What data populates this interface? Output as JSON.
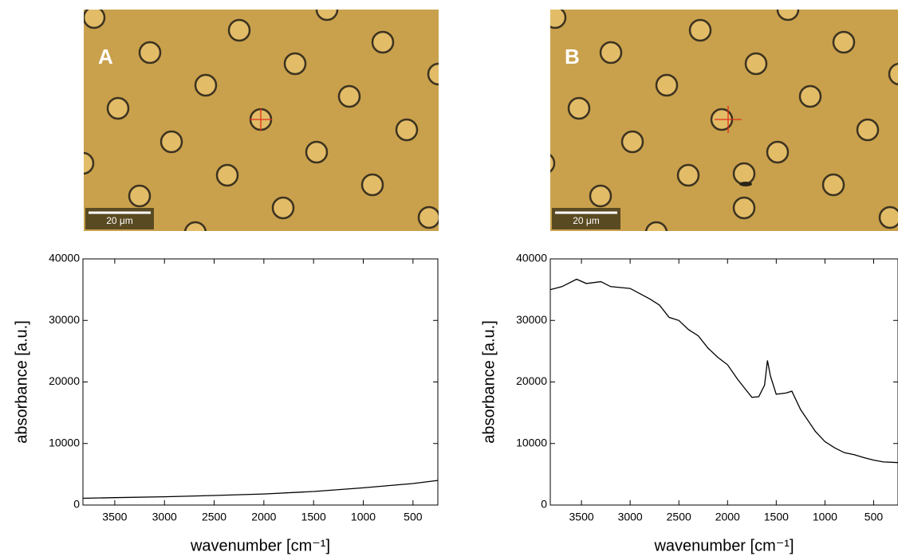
{
  "images": [
    {
      "label": "A",
      "scale_bar": "20 μm"
    },
    {
      "label": "B",
      "scale_bar": "20 μm"
    }
  ],
  "chart_data": [
    {
      "type": "line",
      "xlabel": "wavenumber [cm⁻¹]",
      "ylabel": "absorbance [a.u.]",
      "color": "#000000",
      "xlim": [
        3820,
        250
      ],
      "ylim": [
        0,
        40000
      ],
      "xticks": [
        3500,
        3000,
        2500,
        2000,
        1500,
        1000,
        500
      ],
      "yticks": [
        0,
        10000,
        20000,
        30000,
        40000
      ],
      "x": [
        3820,
        3500,
        3000,
        2500,
        2000,
        1500,
        1000,
        500,
        250
      ],
      "values": [
        1100,
        1200,
        1350,
        1550,
        1800,
        2200,
        2800,
        3500,
        4000
      ]
    },
    {
      "type": "line",
      "xlabel": "wavenumber [cm⁻¹]",
      "ylabel": "absorbance [a.u.]",
      "color": "#000000",
      "xlim": [
        3820,
        250
      ],
      "ylim": [
        0,
        40000
      ],
      "xticks": [
        3500,
        3000,
        2500,
        2000,
        1500,
        1000,
        500
      ],
      "yticks": [
        0,
        10000,
        20000,
        30000,
        40000
      ],
      "x": [
        3820,
        3700,
        3550,
        3450,
        3300,
        3200,
        3000,
        2800,
        2700,
        2600,
        2500,
        2400,
        2300,
        2200,
        2100,
        2000,
        1900,
        1800,
        1750,
        1680,
        1620,
        1590,
        1560,
        1500,
        1400,
        1340,
        1250,
        1100,
        1000,
        900,
        800,
        700,
        600,
        500,
        400,
        250
      ],
      "values": [
        35000,
        35500,
        36700,
        36000,
        36300,
        35500,
        35200,
        33500,
        32500,
        30500,
        30000,
        28500,
        27500,
        25500,
        24000,
        22800,
        20500,
        18500,
        17500,
        17600,
        19500,
        23500,
        21000,
        18000,
        18200,
        18500,
        15500,
        12000,
        10300,
        9300,
        8500,
        8200,
        7700,
        7300,
        7000,
        6900
      ]
    }
  ]
}
